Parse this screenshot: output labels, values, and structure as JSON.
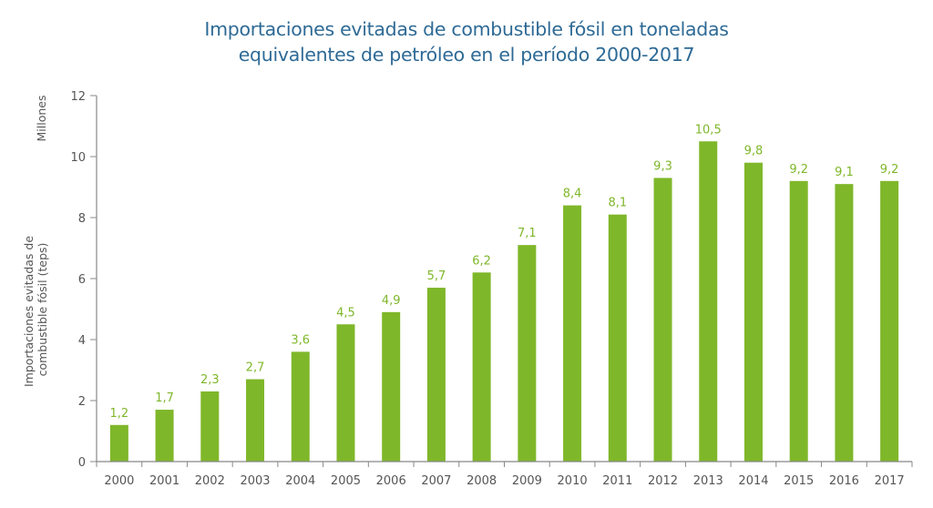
{
  "chart_data": {
    "type": "bar",
    "title_lines": [
      "Importaciones evitadas de combustible fósil en toneladas",
      "equivalentes de petróleo en el período 2000-2017"
    ],
    "categories": [
      "2000",
      "2001",
      "2002",
      "2003",
      "2004",
      "2005",
      "2006",
      "2007",
      "2008",
      "2009",
      "2010",
      "2011",
      "2012",
      "2013",
      "2014",
      "2015",
      "2016",
      "2017"
    ],
    "values": [
      1.2,
      1.7,
      2.3,
      2.7,
      3.6,
      4.5,
      4.9,
      5.7,
      6.2,
      7.1,
      8.4,
      8.1,
      9.3,
      10.5,
      9.8,
      9.2,
      9.1,
      9.2
    ],
    "data_labels": [
      "1,2",
      "1,7",
      "2,3",
      "2,7",
      "3,6",
      "4,5",
      "4,9",
      "5,7",
      "6,2",
      "7,1",
      "8,4",
      "8,1",
      "9,3",
      "10,5",
      "9,8",
      "9,2",
      "9,1",
      "9,2"
    ],
    "xlabel": "",
    "ylabel_lines": [
      "Importaciones evitadas de",
      "combustible fósil (teps)"
    ],
    "yunit_label": "Millones",
    "ylim": [
      0,
      12
    ],
    "yticks": [
      0,
      2,
      4,
      6,
      8,
      10,
      12
    ],
    "ytick_labels": [
      "0",
      "2",
      "4",
      "6",
      "8",
      "10",
      "12"
    ],
    "grid": false,
    "legend": "none",
    "colors": {
      "bar": "#7fb72a",
      "data_label": "#7fb72a",
      "title": "#2e6a96",
      "axis": "#888888",
      "tick_text": "#555555"
    }
  }
}
